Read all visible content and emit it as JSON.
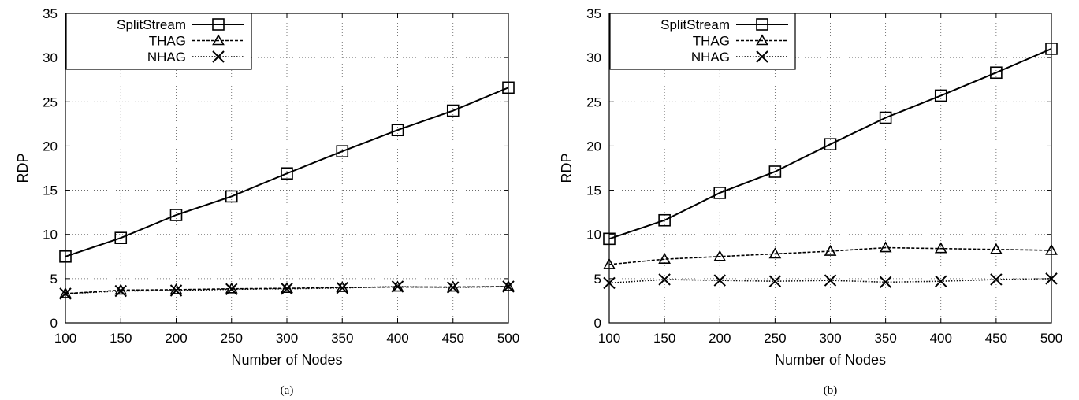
{
  "chart_data": [
    {
      "type": "line",
      "panel_label": "(a)",
      "xlabel": "Number of Nodes",
      "ylabel": "RDP",
      "x": [
        100,
        150,
        200,
        250,
        300,
        350,
        400,
        450,
        500
      ],
      "xlim": [
        100,
        500
      ],
      "ylim": [
        0,
        35
      ],
      "xticks": [
        100,
        150,
        200,
        250,
        300,
        350,
        400,
        450,
        500
      ],
      "yticks": [
        0,
        5,
        10,
        15,
        20,
        25,
        30,
        35
      ],
      "grid": true,
      "legend_position": "top-left",
      "series": [
        {
          "name": "SplitStream",
          "marker": "square",
          "line": "solid",
          "values": [
            7.5,
            9.6,
            12.2,
            14.3,
            16.9,
            19.4,
            21.8,
            24.0,
            26.6
          ]
        },
        {
          "name": "THAG",
          "marker": "triangle",
          "line": "dashed",
          "values": [
            3.3,
            3.7,
            3.75,
            3.85,
            3.9,
            4.0,
            4.05,
            4.05,
            4.1
          ]
        },
        {
          "name": "NHAG",
          "marker": "x",
          "line": "dotted",
          "values": [
            3.3,
            3.6,
            3.65,
            3.8,
            3.85,
            3.95,
            4.1,
            4.0,
            4.1
          ]
        }
      ]
    },
    {
      "type": "line",
      "panel_label": "(b)",
      "xlabel": "Number of Nodes",
      "ylabel": "RDP",
      "x": [
        100,
        150,
        200,
        250,
        300,
        350,
        400,
        450,
        500
      ],
      "xlim": [
        100,
        500
      ],
      "ylim": [
        0,
        35
      ],
      "xticks": [
        100,
        150,
        200,
        250,
        300,
        350,
        400,
        450,
        500
      ],
      "yticks": [
        0,
        5,
        10,
        15,
        20,
        25,
        30,
        35
      ],
      "grid": true,
      "legend_position": "top-left",
      "series": [
        {
          "name": "SplitStream",
          "marker": "square",
          "line": "solid",
          "values": [
            9.5,
            11.6,
            14.7,
            17.1,
            20.2,
            23.2,
            25.7,
            28.3,
            31.0
          ]
        },
        {
          "name": "THAG",
          "marker": "triangle",
          "line": "dashed",
          "values": [
            6.6,
            7.2,
            7.5,
            7.8,
            8.1,
            8.5,
            8.4,
            8.3,
            8.2
          ]
        },
        {
          "name": "NHAG",
          "marker": "x",
          "line": "dotted",
          "values": [
            4.5,
            4.9,
            4.8,
            4.7,
            4.8,
            4.6,
            4.7,
            4.9,
            5.0
          ]
        }
      ]
    }
  ]
}
